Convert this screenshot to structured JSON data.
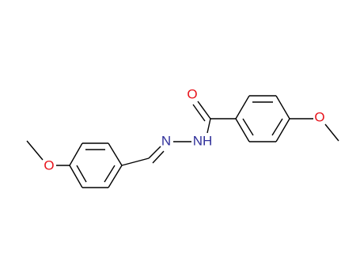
{
  "atoms": [
    "O",
    "N",
    "NH",
    "O",
    "O"
  ]
}
